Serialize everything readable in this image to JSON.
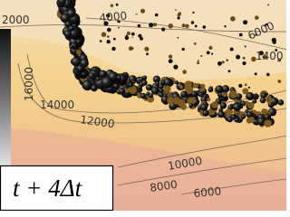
{
  "contour_labels": [
    "2000",
    "4000",
    "6000",
    "16000",
    "1400",
    "14000",
    "12000",
    "10000",
    "8000",
    "6000"
  ],
  "caption": "t + 4Δt"
}
